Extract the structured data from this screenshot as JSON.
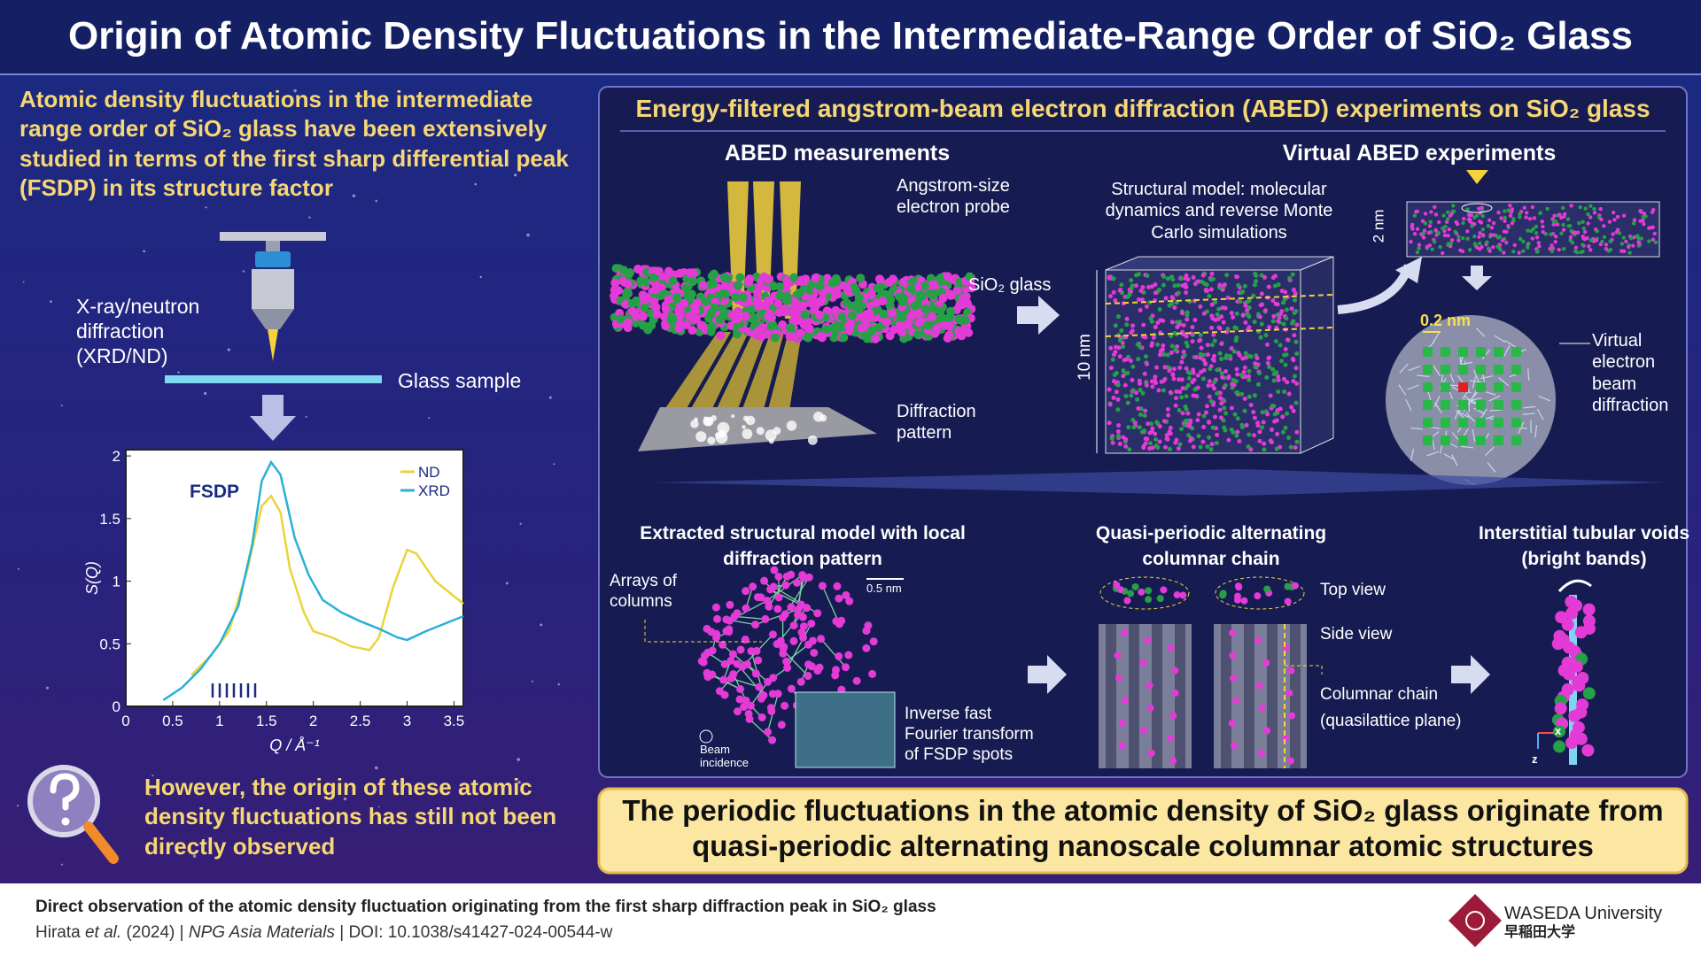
{
  "header": {
    "title": "Origin of Atomic Density Fluctuations in the Intermediate-Range Order of SiO₂ Glass"
  },
  "left_panel": {
    "intro": "Atomic density fluctuations in the intermediate range order of SiO₂ glass have been extensively studied in terms of the first sharp differential peak (FSDP) in its structure factor",
    "method_label": "X-ray/neutron diffraction (XRD/ND)",
    "sample_label": "Glass sample",
    "plot": {
      "xlabel": "Q / Å⁻¹",
      "ylabel": "S(Q)",
      "annotation": "FSDP",
      "xlim": [
        0,
        3.6
      ],
      "ylim": [
        0,
        2.05
      ],
      "xticks": [
        0,
        0.5,
        1,
        1.5,
        2,
        2.5,
        3,
        3.5
      ],
      "yticks": [
        0,
        0.5,
        1,
        1.5,
        2
      ],
      "series": [
        {
          "name": "ND",
          "color": "#e8d53a",
          "x": [
            0.7,
            0.9,
            1.1,
            1.3,
            1.45,
            1.55,
            1.65,
            1.75,
            1.9,
            2.0,
            2.2,
            2.4,
            2.6,
            2.7,
            2.85,
            3.0,
            3.1,
            3.3,
            3.5,
            3.6
          ],
          "values": [
            0.25,
            0.4,
            0.6,
            1.1,
            1.6,
            1.68,
            1.55,
            1.1,
            0.75,
            0.6,
            0.55,
            0.48,
            0.45,
            0.55,
            0.95,
            1.25,
            1.22,
            1.0,
            0.88,
            0.82
          ]
        },
        {
          "name": "XRD",
          "color": "#2ab0d8",
          "x": [
            0.4,
            0.6,
            0.8,
            1.0,
            1.2,
            1.35,
            1.45,
            1.55,
            1.65,
            1.8,
            1.95,
            2.1,
            2.3,
            2.5,
            2.7,
            2.9,
            3.0,
            3.2,
            3.4,
            3.6
          ],
          "values": [
            0.05,
            0.15,
            0.3,
            0.5,
            0.8,
            1.3,
            1.8,
            1.95,
            1.85,
            1.35,
            1.05,
            0.85,
            0.75,
            0.68,
            0.62,
            0.55,
            0.53,
            0.6,
            0.66,
            0.72
          ]
        }
      ]
    },
    "question": "However, the origin of these atomic density fluctuations has still not been directly observed"
  },
  "right_panel": {
    "header": "Energy-filtered angstrom-beam electron diffraction (ABED) experiments on SiO₂ glass",
    "abed": {
      "title": "ABED measurements",
      "probe": "Angstrom-size electron probe",
      "sample": "SiO₂ glass",
      "pattern": "Diffraction pattern"
    },
    "virtual": {
      "title": "Virtual ABED experiments",
      "model": "Structural model: molecular dynamics and reverse Monte Carlo simulations",
      "size_big": "10 nm",
      "size_thin": "2 nm",
      "spacing": "0.2 nm",
      "beam": "Virtual electron beam diffraction"
    },
    "extracted": {
      "title": "Extracted structural model with local diffraction pattern",
      "arrays": "Arrays of columns",
      "scale": "0.5 nm",
      "incidence": "Beam incidence",
      "ifft": "Inverse fast Fourier transform of FSDP spots"
    },
    "chain": {
      "title": "Quasi-periodic alternating columnar chain",
      "top": "Top view",
      "side": "Side view",
      "columnar": "Columnar chain (quasilattice plane)"
    },
    "voids": {
      "title": "Interstitial tubular voids (bright bands)",
      "axis_x": "x",
      "axis_z": "z"
    }
  },
  "conclusion": "The periodic fluctuations in the atomic density of SiO₂ glass originate from quasi-periodic alternating nanoscale columnar atomic structures",
  "footer": {
    "paper_title": "Direct observation of the atomic density fluctuation originating from the first sharp diffraction peak in SiO₂ glass",
    "citation": {
      "author": "Hirata",
      "etal": "et al.",
      "year": "(2024)",
      "separator": "|",
      "journal": "NPG Asia Materials",
      "doi": "DOI: 10.1038/s41427-024-00544-w"
    },
    "university": "WASEDA University",
    "university_jp": "早稲田大学"
  }
}
